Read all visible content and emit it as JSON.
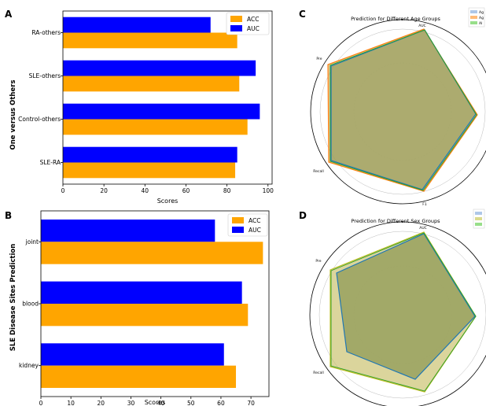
{
  "chart_data": [
    {
      "panel": "A",
      "type": "bar",
      "orientation": "horizontal",
      "ylabel": "One versus Others",
      "xlabel": "Scores",
      "categories": [
        "SLE-RA",
        "Control-others",
        "SLE-others",
        "RA-others"
      ],
      "series": [
        {
          "name": "ACC",
          "values": [
            84,
            90,
            86,
            85
          ]
        },
        {
          "name": "AUC",
          "values": [
            85,
            96,
            94,
            72
          ]
        }
      ],
      "xlim": [
        0,
        102
      ],
      "xticks": [
        0,
        20,
        40,
        60,
        80,
        100
      ],
      "legend": "top-right",
      "colors": {
        "ACC": "#ffa500",
        "AUC": "#0000ff"
      }
    },
    {
      "panel": "B",
      "type": "bar",
      "orientation": "horizontal",
      "ylabel": "SLE Disease Sites Prediction",
      "xlabel": "Scores",
      "categories": [
        "kidney",
        "blood",
        "joint"
      ],
      "series": [
        {
          "name": "ACC",
          "values": [
            65,
            69,
            74
          ]
        },
        {
          "name": "AUC",
          "values": [
            61,
            67,
            58
          ]
        }
      ],
      "xlim": [
        0,
        76
      ],
      "xticks": [
        0,
        10,
        20,
        30,
        40,
        50,
        60,
        70
      ],
      "legend": "top-right",
      "colors": {
        "ACC": "#ffa500",
        "AUC": "#0000ff"
      }
    },
    {
      "panel": "C",
      "type": "radar",
      "title": "Prediction for Different Age Groups",
      "axes": [
        "AUC",
        "F1",
        "Recall",
        "Pre"
      ],
      "legend": [
        "Ag",
        "Ag",
        "Al"
      ],
      "legend_position": "top-right",
      "colors": [
        "#1f77b4",
        "#ff7f0e",
        "#2ca02c"
      ],
      "fill": "#8f9a57"
    },
    {
      "panel": "D",
      "type": "radar",
      "title": "Prediction for Different Sex Groups",
      "axes": [
        "AUC",
        "Recall",
        "Pre"
      ],
      "legend_position": "top-right",
      "colors": [
        "#1f77b4",
        "#bcbd22",
        "#2ca02c"
      ],
      "fill": "#8f9a57"
    }
  ]
}
